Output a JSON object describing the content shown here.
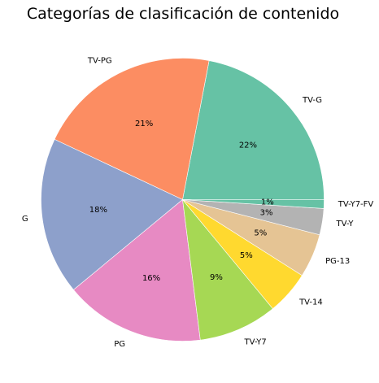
{
  "chart_data": {
    "type": "pie",
    "title": "Categorías de clasificación de contenido",
    "start_angle_deg": 0,
    "direction": "counterclockwise",
    "slices": [
      {
        "label": "TV-G",
        "value": 22,
        "pct_label": "22%",
        "color": "#66c2a5"
      },
      {
        "label": "TV-PG",
        "value": 21,
        "pct_label": "21%",
        "color": "#fc8d62"
      },
      {
        "label": "G",
        "value": 18,
        "pct_label": "18%",
        "color": "#8da0cb"
      },
      {
        "label": "PG",
        "value": 16,
        "pct_label": "16%",
        "color": "#e78ac3"
      },
      {
        "label": "TV-Y7",
        "value": 9,
        "pct_label": "9%",
        "color": "#a6d854"
      },
      {
        "label": "TV-14",
        "value": 5,
        "pct_label": "5%",
        "color": "#ffd92f"
      },
      {
        "label": "PG-13",
        "value": 5,
        "pct_label": "5%",
        "color": "#e5c494"
      },
      {
        "label": "TV-Y",
        "value": 3,
        "pct_label": "3%",
        "color": "#b3b3b3"
      },
      {
        "label": "TV-Y7-FV",
        "value": 1,
        "pct_label": "1%",
        "color": "#66c2a5"
      }
    ]
  }
}
